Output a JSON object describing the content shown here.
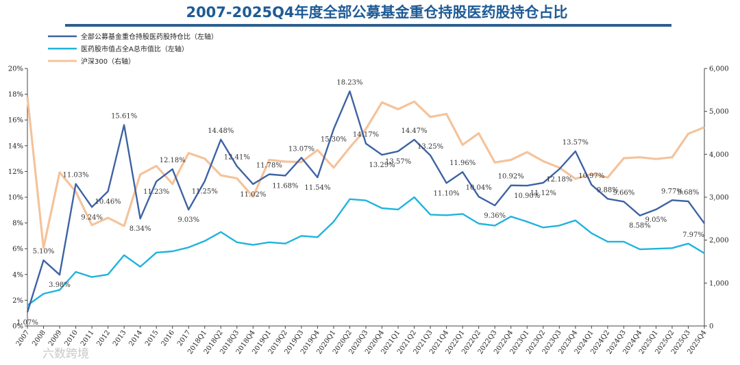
{
  "chart_data": {
    "type": "line",
    "title": "2007-2025Q4年度全部公募基金重仓持股医药股持仓占比",
    "categories": [
      "2007",
      "2008",
      "2009",
      "2010",
      "2011",
      "2012",
      "2013",
      "2014",
      "2015",
      "2016",
      "2017",
      "2018Q1",
      "2018Q2",
      "2018Q3",
      "2018Q4",
      "2019Q1",
      "2019Q2",
      "2019Q3",
      "2019Q4",
      "2020Q1",
      "2020Q2",
      "2020Q3",
      "2020Q4",
      "2021Q1",
      "2021Q2",
      "2021Q3",
      "2021Q4",
      "2022Q1",
      "2022Q2",
      "2022Q3",
      "2022Q4",
      "2023Q1",
      "2023Q2",
      "2023Q3",
      "2023Q4",
      "2024Q1",
      "2024Q2",
      "2024Q3",
      "2024Q4",
      "2025Q1",
      "2025Q2",
      "2025Q3",
      "2025Q4"
    ],
    "left_axis": {
      "ylim": [
        0,
        20
      ],
      "ticks": [
        "0%",
        "2%",
        "4%",
        "6%",
        "8%",
        "10%",
        "12%",
        "14%",
        "16%",
        "18%",
        "20%"
      ]
    },
    "right_axis": {
      "ylim": [
        0,
        6000
      ],
      "ticks": [
        "0",
        "1,000",
        "2,000",
        "3,000",
        "4,000",
        "5,000",
        "6,000"
      ]
    },
    "series": [
      {
        "name": "全部公募基金重仓持股医药股持仓比（左轴）",
        "axis": "left",
        "color": "#3d62a4",
        "values": [
          1.07,
          5.1,
          3.98,
          11.03,
          9.24,
          10.46,
          15.61,
          8.34,
          11.23,
          12.18,
          9.03,
          11.25,
          14.48,
          12.41,
          11.02,
          11.78,
          11.68,
          13.07,
          11.54,
          15.3,
          18.23,
          14.17,
          13.29,
          13.57,
          14.47,
          13.25,
          11.1,
          11.96,
          10.04,
          9.36,
          10.92,
          10.9,
          11.12,
          12.18,
          13.57,
          10.97,
          9.88,
          9.66,
          8.58,
          9.05,
          9.77,
          9.68,
          7.97
        ]
      },
      {
        "name": "医药股市值占全A总市值比（左轴）",
        "axis": "left",
        "color": "#1fb3dc",
        "values": [
          1.6,
          2.5,
          2.8,
          4.2,
          3.8,
          4.0,
          5.5,
          4.6,
          5.7,
          5.8,
          6.1,
          6.6,
          7.3,
          6.5,
          6.3,
          6.5,
          6.4,
          7.0,
          6.9,
          8.1,
          9.85,
          9.75,
          9.15,
          9.05,
          10.0,
          8.65,
          8.6,
          8.7,
          7.95,
          7.8,
          8.5,
          8.1,
          7.65,
          7.8,
          8.2,
          7.2,
          6.55,
          6.55,
          5.95,
          6.0,
          6.05,
          6.4,
          5.65
        ]
      },
      {
        "name": "沪深300（右轴）",
        "axis": "right",
        "color": "#f4c39b",
        "values": [
          5340,
          1820,
          3580,
          3130,
          2350,
          2520,
          2330,
          3530,
          3730,
          3310,
          4030,
          3900,
          3510,
          3440,
          3010,
          3870,
          3830,
          3820,
          4100,
          3690,
          4160,
          4590,
          5210,
          5050,
          5230,
          4870,
          4940,
          4220,
          4490,
          3810,
          3870,
          4050,
          3840,
          3690,
          3430,
          3540,
          3460,
          3910,
          3930,
          3890,
          3930,
          4480,
          4630
        ]
      }
    ],
    "data_labels": [
      "1.07%",
      "5.10%",
      "3.98%",
      "11.03%",
      "9.24%",
      "10.46%",
      "15.61%",
      "8.34%",
      "11.23%",
      "12.18%",
      "9.03%",
      "11.25%",
      "14.48%",
      "12.41%",
      "11.02%",
      "11.78%",
      "11.68%",
      "13.07%",
      "11.54%",
      "15.30%",
      "18.23%",
      "14.17%",
      "13.29%",
      "13.57%",
      "14.47%",
      "13.25%",
      "11.10%",
      "11.96%",
      "10.04%",
      "9.36%",
      "10.92%",
      "10.90%",
      "11.12%",
      "12.18%",
      "13.57%",
      "10.97%",
      "9.88%",
      "9.66%",
      "8.58%",
      "9.05%",
      "9.77%",
      "9.68%",
      "7.97%"
    ],
    "last_series2_label": "7.97%",
    "legend_position": "top-left"
  },
  "watermark": "六数跨境"
}
